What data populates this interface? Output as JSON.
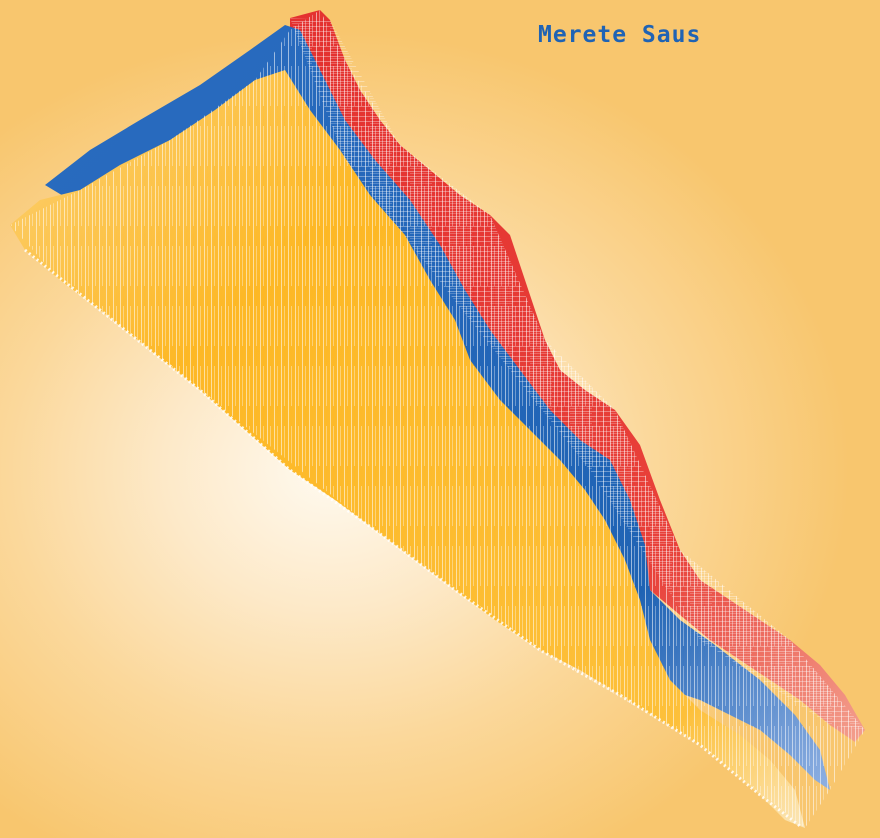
{
  "title": "Merete Saus",
  "colors": {
    "background_light": "#fffaf0",
    "background_warm": "#f8c66e",
    "yellow": "#fdb825",
    "blue": "#1f63b4",
    "red": "#e4312f",
    "title": "#1f63b4"
  }
}
